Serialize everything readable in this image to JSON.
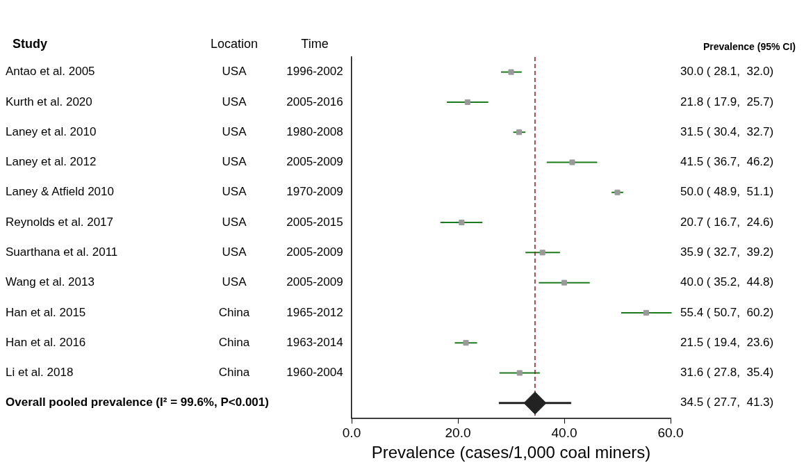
{
  "chart_data": {
    "type": "scatter",
    "orientation": "horizontal",
    "xlabel": "Prevalence (cases/1,000 coal miners)",
    "categories": [
      "Antao et al. 2005",
      "Kurth et al. 2020",
      "Laney et al. 2010",
      "Laney et al. 2012",
      "Laney & Atfield 2010",
      "Reynolds et al. 2017",
      "Suarthana et al. 2011",
      "Wang et al. 2013",
      "Han et al. 2015",
      "Han et al. 2016",
      "Li et al. 2018",
      "Overall pooled prevalence (I² = 99.6%, P<0.001)"
    ],
    "series": [
      {
        "color": "#999999",
        "marker": "square",
        "values": [
          30.0,
          21.8,
          31.5,
          41.5,
          50.0,
          20.7,
          35.9,
          40.0,
          55.4,
          21.5,
          31.6,
          null
        ],
        "errors": [
          [
            28.1,
            32.0
          ],
          [
            17.9,
            25.7
          ],
          [
            30.4,
            32.7
          ],
          [
            36.7,
            46.2
          ],
          [
            48.9,
            51.1
          ],
          [
            16.7,
            24.6
          ],
          [
            32.7,
            39.2
          ],
          [
            35.2,
            44.8
          ],
          [
            50.7,
            60.2
          ],
          [
            19.4,
            23.6
          ],
          [
            27.8,
            35.4
          ],
          null
        ],
        "value_labels": [
          "30.0 ( 28.1,  32.0)",
          "21.8 ( 17.9,  25.7)",
          "31.5 ( 30.4,  32.7)",
          "41.5 ( 36.7,  46.2)",
          "50.0 ( 48.9,  51.1)",
          "20.7 ( 16.7,  24.6)",
          "35.9 ( 32.7,  39.2)",
          "40.0 ( 35.2,  44.8)",
          "55.4 ( 50.7,  60.2)",
          "21.5 ( 19.4,  23.6)",
          "31.6 ( 27.8,  35.4)",
          null
        ]
      },
      {
        "color": "#222222",
        "marker": "diamond",
        "values": [
          null,
          null,
          null,
          null,
          null,
          null,
          null,
          null,
          null,
          null,
          null,
          34.5
        ],
        "errors": [
          null,
          null,
          null,
          null,
          null,
          null,
          null,
          null,
          null,
          null,
          null,
          [
            27.7,
            41.3
          ]
        ]
      }
    ],
    "xlim": [
      0,
      60
    ],
    "xticks": [
      {
        "value": 0,
        "label": "0.0"
      },
      {
        "value": 20,
        "label": "20.0"
      },
      {
        "value": 40,
        "label": "40.0"
      },
      {
        "value": 60,
        "label": "60.0"
      }
    ],
    "ref_lines": [
      {
        "axis": "x",
        "value": 34.5,
        "color": "#8b1a1a",
        "line_style": "dashed"
      }
    ],
    "grid": false,
    "legend": false,
    "annotations": [
      "Study",
      "Location",
      "Time",
      "Prevalence (95% CI)",
      "USA",
      "1996-2002",
      "USA",
      "2005-2016",
      "USA",
      "1980-2008",
      "USA",
      "2005-2009",
      "USA",
      "1970-2009",
      "USA",
      "2005-2015",
      "USA",
      "2005-2009",
      "USA",
      "2005-2009",
      "China",
      "1965-2012",
      "China",
      "1963-2014",
      "China",
      "1960-2004",
      "34.5 ( 27.7,  41.3)"
    ]
  }
}
